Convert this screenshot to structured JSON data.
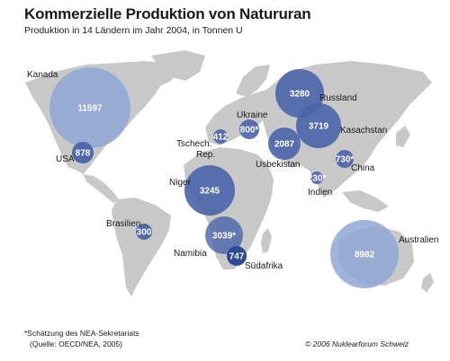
{
  "title": "Kommerzielle Produktion von Natururan",
  "subtitle": "Produktion in 14 Ländern im Jahr 2004, in Tonnen U",
  "colors": {
    "land": "#c8c8c8",
    "bubble_large": "#8fa6d4",
    "bubble_small": "#4a64a8",
    "bubble_dark": "#2d4a93"
  },
  "countries": [
    {
      "id": "kanada",
      "name": "Kanada",
      "value": "11597"
    },
    {
      "id": "usa",
      "name": "USA",
      "value": "878"
    },
    {
      "id": "brasilien",
      "name": "Brasilien",
      "value": "300"
    },
    {
      "id": "niger",
      "name": "Niger",
      "value": "3245"
    },
    {
      "id": "namibia",
      "name": "Namibia",
      "value": "3039*"
    },
    {
      "id": "suedafrika",
      "name": "Südafrika",
      "value": "747"
    },
    {
      "id": "tschech",
      "name": "Tschech.",
      "name2": "Rep.",
      "value": "412"
    },
    {
      "id": "ukraine",
      "name": "Ukraine",
      "value": "800*"
    },
    {
      "id": "russland",
      "name": "Russland",
      "value": "3280"
    },
    {
      "id": "usbekistan",
      "name": "Usbekistan",
      "value": "2087"
    },
    {
      "id": "kasachstan",
      "name": "Kasachstan",
      "value": "3719"
    },
    {
      "id": "china",
      "name": "China",
      "value": "730*"
    },
    {
      "id": "indien",
      "name": "Indien",
      "value": "230*"
    },
    {
      "id": "australien",
      "name": "Australien",
      "value": "8982"
    }
  ],
  "footnote": "*Schätzung des NEA-Sekretariats",
  "source": "(Quelle: OECD/NEA, 2005)",
  "copyright": "© 2006 Nuklearforum Schweiz"
}
